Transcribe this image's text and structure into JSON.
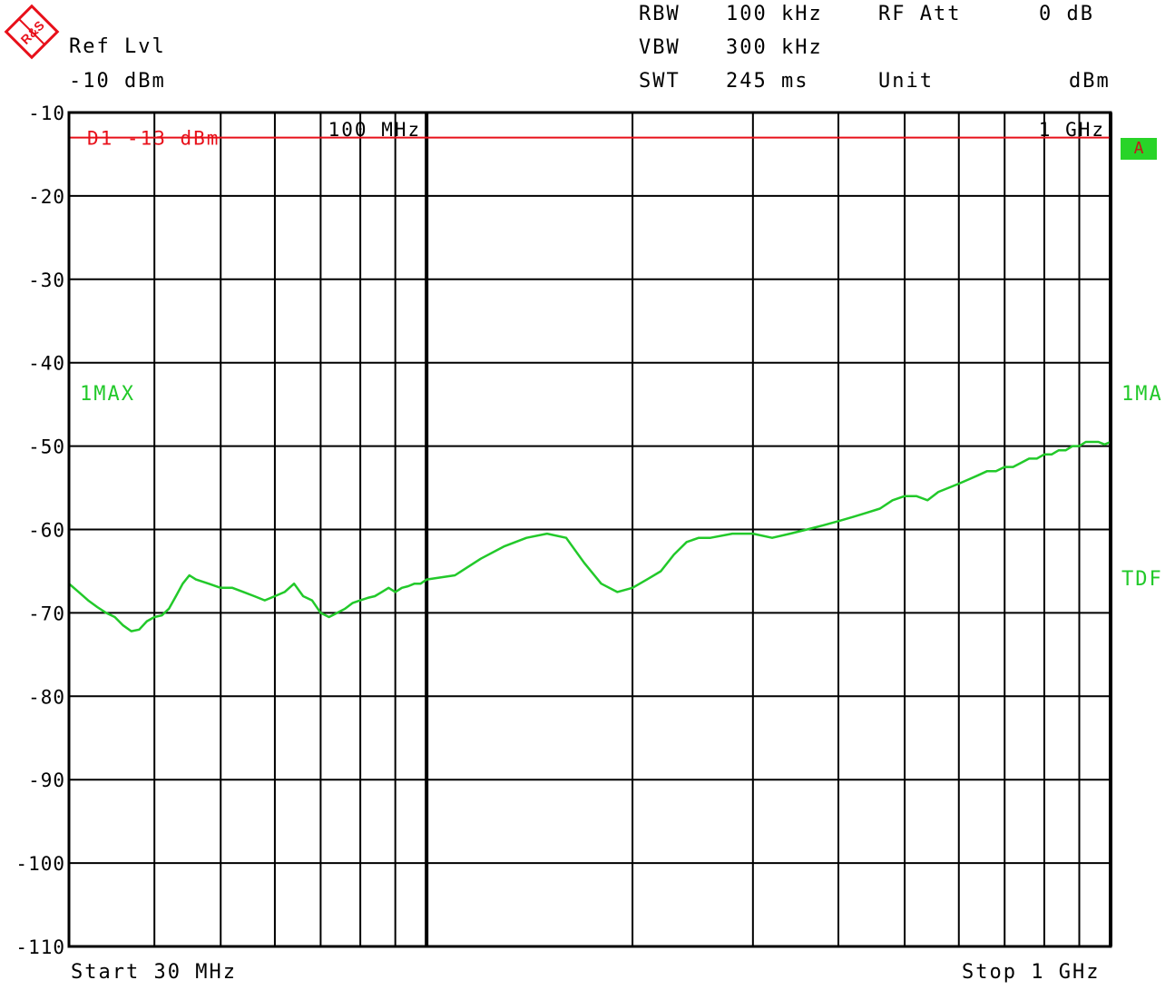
{
  "header": {
    "ref_lvl_label": "Ref Lvl",
    "ref_lvl_value": "-10 dBm",
    "rbw_label": "RBW",
    "rbw_value": "100 kHz",
    "vbw_label": "VBW",
    "vbw_value": "300 kHz",
    "swt_label": "SWT",
    "swt_value": "245 ms",
    "rfatt_label": "RF Att",
    "rfatt_value": "0 dB",
    "unit_label": "Unit",
    "unit_value": "dBm"
  },
  "side_labels": {
    "trace_left": "1MAX",
    "trace_right": "1MA",
    "transducer": "TDF",
    "badge": "A"
  },
  "footer": {
    "start": "Start 30 MHz",
    "stop": "Stop 1 GHz"
  },
  "colors": {
    "trace": "#22c92a",
    "limit_line": "#e8101a",
    "grid": "#000000",
    "logo": "#e8101a"
  },
  "logo_text": "R&S",
  "chart_data": {
    "type": "line",
    "x_scale": "log",
    "xlim": [
      30,
      1000
    ],
    "ylim": [
      -110,
      -10
    ],
    "x_unit": "MHz",
    "y_unit": "dBm",
    "grid": true,
    "yticks": [
      -10,
      -20,
      -30,
      -40,
      -50,
      -60,
      -70,
      -80,
      -90,
      -100,
      -110
    ],
    "ytick_labels": [
      "-10",
      "-20",
      "-30",
      "-40",
      "-50",
      "-60",
      "-70",
      "-80",
      "-90",
      "-100",
      "-110"
    ],
    "xgrid_major": [
      100,
      1000
    ],
    "xgrid_minor": [
      40,
      50,
      60,
      70,
      80,
      90,
      200,
      300,
      400,
      500,
      600,
      700,
      800,
      900
    ],
    "x_markers": [
      {
        "x": 100,
        "label": "100 MHz"
      },
      {
        "x": 1000,
        "label": "1 GHz"
      }
    ],
    "limit_line": {
      "label": "D1 -13 dBm",
      "y": -13
    },
    "series": [
      {
        "x": [
          30,
          31,
          32,
          33,
          34,
          35,
          36,
          37,
          38,
          39,
          40,
          41,
          42,
          43,
          44,
          45,
          46,
          48,
          50,
          52,
          54,
          56,
          58,
          60,
          62,
          64,
          66,
          68,
          70,
          72,
          74,
          76,
          78,
          80,
          82,
          84,
          86,
          88,
          90,
          92,
          94,
          96,
          98,
          100,
          110,
          120,
          130,
          140,
          150,
          160,
          170,
          180,
          190,
          200,
          210,
          220,
          230,
          240,
          250,
          260,
          280,
          300,
          320,
          340,
          360,
          380,
          400,
          420,
          440,
          460,
          480,
          500,
          520,
          540,
          560,
          580,
          600,
          620,
          640,
          660,
          680,
          700,
          720,
          740,
          760,
          780,
          800,
          820,
          840,
          860,
          880,
          900,
          920,
          940,
          960,
          980,
          1000
        ],
        "y": [
          -66.5,
          -67.5,
          -68.5,
          -69.3,
          -70,
          -70.5,
          -71.5,
          -72.2,
          -72,
          -71,
          -70.5,
          -70.3,
          -69.5,
          -68,
          -66.5,
          -65.5,
          -66,
          -66.5,
          -67,
          -67,
          -67.5,
          -68,
          -68.5,
          -68,
          -67.5,
          -66.5,
          -68,
          -68.5,
          -70,
          -70.5,
          -70,
          -69.5,
          -68.8,
          -68.5,
          -68.2,
          -68,
          -67.5,
          -67,
          -67.5,
          -67,
          -66.8,
          -66.5,
          -66.5,
          -66,
          -65.5,
          -63.5,
          -62,
          -61,
          -60.5,
          -61,
          -64,
          -66.5,
          -67.5,
          -67,
          -66,
          -65,
          -63,
          -61.5,
          -61,
          -61,
          -60.5,
          -60.5,
          -61,
          -60.5,
          -60,
          -59.5,
          -59,
          -58.5,
          -58,
          -57.5,
          -56.5,
          -56,
          -56,
          -56.5,
          -55.5,
          -55,
          -54.5,
          -54,
          -53.5,
          -53,
          -53,
          -52.5,
          -52.5,
          -52,
          -51.5,
          -51.5,
          -51,
          -51,
          -50.5,
          -50.5,
          -50,
          -50,
          -49.5,
          -49.5,
          -49.5,
          -49.8,
          -49.5
        ]
      }
    ]
  }
}
